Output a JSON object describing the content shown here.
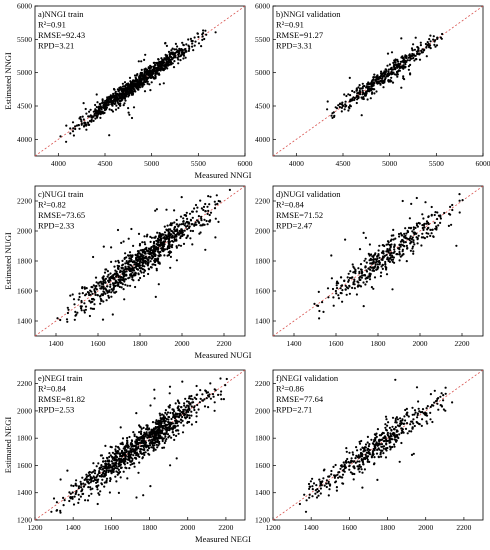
{
  "figure": {
    "background": "#ffffff",
    "point_color": "#000000",
    "line_color": "#d9534f"
  },
  "chart_data": [
    {
      "type": "scatter",
      "panel": "a",
      "annotation": [
        "a)NNGI train",
        "R²=0.91",
        "RMSE=92.43",
        "RPD=3.21"
      ],
      "xlabel": "",
      "ylabel": "Estimated NNGI",
      "xlim": [
        3750,
        6000
      ],
      "ylim": [
        3750,
        6000
      ],
      "xticks": [
        4000,
        4500,
        5000,
        5500,
        6000
      ],
      "yticks": [
        4000,
        4500,
        5000,
        5500,
        6000
      ],
      "identity_line": true,
      "n_points": 900,
      "x_range": [
        3850,
        5700
      ],
      "y_range": [
        3950,
        5750
      ],
      "spread": 90,
      "center": 5000
    },
    {
      "type": "scatter",
      "panel": "b",
      "annotation": [
        "b)NNGI validation",
        "R²=0.91",
        "RMSE=91.27",
        "RPD=3.31"
      ],
      "xlabel": "Measured NNGI",
      "ylabel": "",
      "xlim": [
        3750,
        6000
      ],
      "ylim": [
        3750,
        6000
      ],
      "xticks": [
        4000,
        4500,
        5000,
        5500,
        6000
      ],
      "yticks": [
        4000,
        4500,
        5000,
        5500,
        6000
      ],
      "identity_line": true,
      "n_points": 420,
      "x_range": [
        4150,
        5700
      ],
      "y_range": [
        4150,
        5750
      ],
      "spread": 90,
      "center": 5000
    },
    {
      "type": "scatter",
      "panel": "c",
      "annotation": [
        "c)NUGI train",
        "R²=0.82",
        "RMSE=73.65",
        "RPD=2.33"
      ],
      "xlabel": "",
      "ylabel": "Estimated NUGI",
      "xlim": [
        1300,
        2300
      ],
      "ylim": [
        1300,
        2300
      ],
      "xticks": [
        1400,
        1600,
        1800,
        2000,
        2200
      ],
      "yticks": [
        1400,
        1600,
        1800,
        2000,
        2200
      ],
      "identity_line": true,
      "n_points": 900,
      "x_range": [
        1330,
        2270
      ],
      "y_range": [
        1380,
        2280
      ],
      "spread": 72,
      "center": 1850
    },
    {
      "type": "scatter",
      "panel": "d",
      "annotation": [
        "d)NUGI validation",
        "R²=0.84",
        "RMSE=71.52",
        "RPD=2.47"
      ],
      "xlabel": "Measured NUGI",
      "ylabel": "",
      "xlim": [
        1300,
        2300
      ],
      "ylim": [
        1300,
        2300
      ],
      "xticks": [
        1400,
        1600,
        1800,
        2000,
        2200
      ],
      "yticks": [
        1400,
        1600,
        1800,
        2000,
        2200
      ],
      "identity_line": true,
      "n_points": 420,
      "x_range": [
        1380,
        2270
      ],
      "y_range": [
        1400,
        2280
      ],
      "spread": 70,
      "center": 1850
    },
    {
      "type": "scatter",
      "panel": "e",
      "annotation": [
        "e)NEGI train",
        "R²=0.84",
        "RMSE=81.82",
        "RPD=2.53"
      ],
      "xlabel": "",
      "ylabel": "Estimated NEGI",
      "xlim": [
        1200,
        2300
      ],
      "ylim": [
        1200,
        2300
      ],
      "xticks": [
        1200,
        1400,
        1600,
        1800,
        2000,
        2200
      ],
      "yticks": [
        1200,
        1400,
        1600,
        1800,
        2000,
        2200
      ],
      "identity_line": true,
      "n_points": 1000,
      "x_range": [
        1230,
        2280
      ],
      "y_range": [
        1230,
        2280
      ],
      "spread": 80,
      "center": 1700
    },
    {
      "type": "scatter",
      "panel": "f",
      "annotation": [
        "f)NEGI validation",
        "R²=0.86",
        "RMSE=77.64",
        "RPD=2.71"
      ],
      "xlabel": "Measured NEGI",
      "ylabel": "",
      "xlim": [
        1200,
        2300
      ],
      "ylim": [
        1200,
        2300
      ],
      "xticks": [
        1200,
        1400,
        1600,
        1800,
        2000,
        2200
      ],
      "yticks": [
        1200,
        1400,
        1600,
        1800,
        2000,
        2200
      ],
      "identity_line": true,
      "n_points": 460,
      "x_range": [
        1250,
        2270
      ],
      "y_range": [
        1250,
        2280
      ],
      "spread": 75,
      "center": 1700
    }
  ]
}
